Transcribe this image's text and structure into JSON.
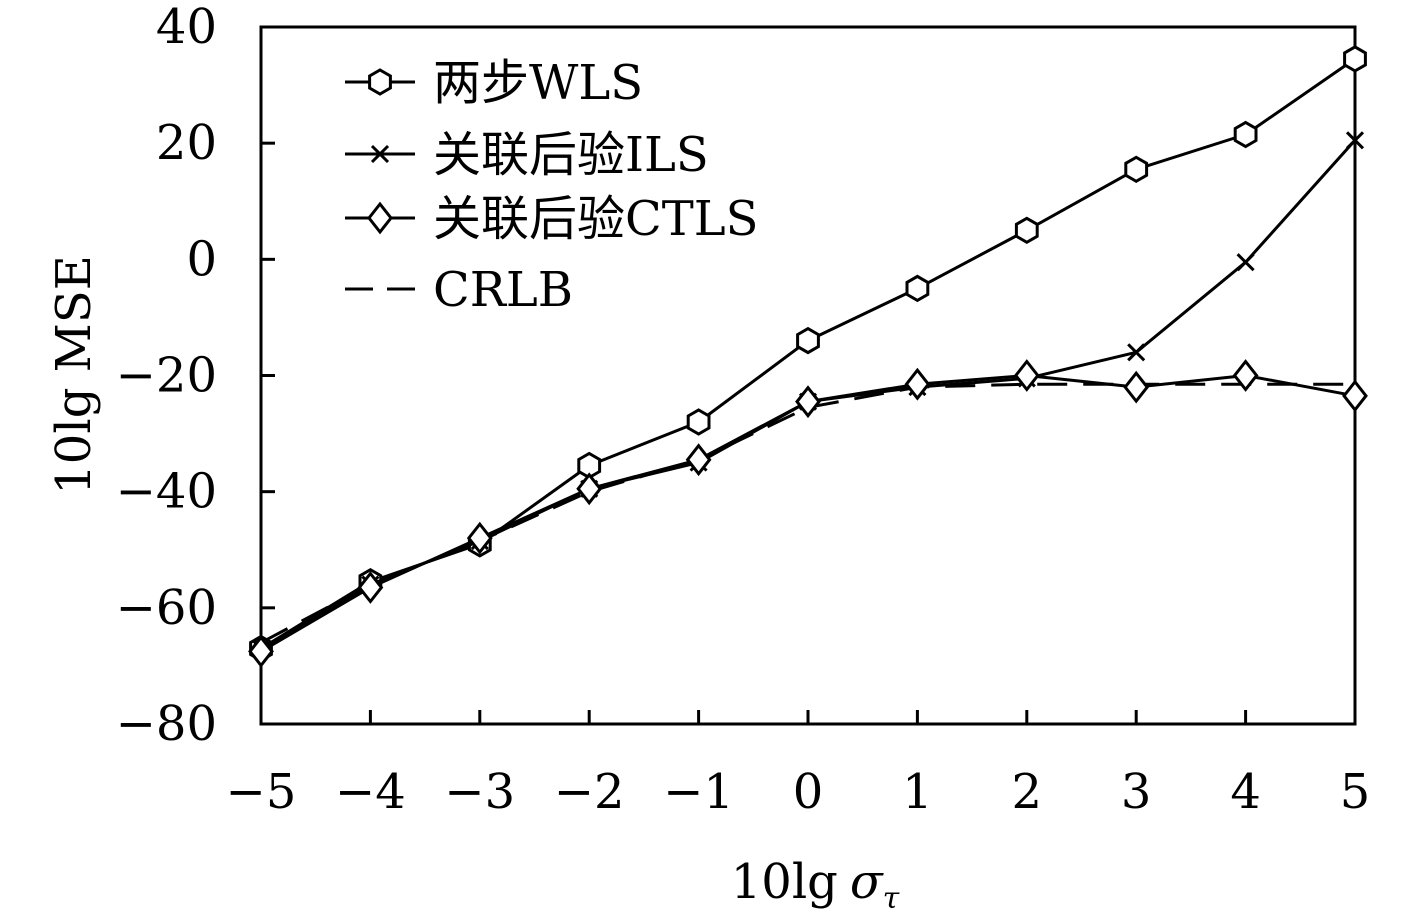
{
  "chart_data": {
    "type": "line",
    "xlabel": "10lg",
    "xlabel_symbol": "σ",
    "xlabel_subscript": "τ",
    "ylabel": "10lg MSE",
    "xlim": [
      -5,
      5
    ],
    "ylim": [
      -80,
      40
    ],
    "xticks": [
      -5,
      -4,
      -3,
      -2,
      -1,
      0,
      1,
      2,
      3,
      4,
      5
    ],
    "yticks": [
      -80,
      -60,
      -40,
      -20,
      0,
      20,
      40
    ],
    "xtick_labels": [
      "−5",
      "−4",
      "−3",
      "−2",
      "−1",
      "0",
      "1",
      "2",
      "3",
      "4",
      "5"
    ],
    "ytick_labels": [
      "−80",
      "−60",
      "−40",
      "−20",
      "0",
      "20",
      "40"
    ],
    "grid": false,
    "legend_position": "top-left",
    "x": [
      -5,
      -4,
      -3,
      -2,
      -1,
      0,
      1,
      2,
      3,
      4,
      5
    ],
    "series": [
      {
        "name": "两步WLS",
        "marker": "hexagon",
        "dash": "solid",
        "values": [
          -67,
          -55.5,
          -49,
          -35.5,
          -28,
          -14,
          -5,
          5,
          15.5,
          21.5,
          34.5
        ]
      },
      {
        "name": "关联后验ILS",
        "marker": "x",
        "dash": "solid",
        "values": [
          -67,
          -56,
          -48.5,
          -39.5,
          -35,
          -24.5,
          -22,
          -20.5,
          -16,
          -0.5,
          20.5
        ]
      },
      {
        "name": "关联后验CTLS",
        "marker": "diamond",
        "dash": "solid",
        "values": [
          -67.5,
          -56.5,
          -48,
          -39.5,
          -34.5,
          -24.5,
          -21.5,
          -20,
          -22,
          -20,
          -23.5
        ]
      },
      {
        "name": "CRLB",
        "marker": "none",
        "dash": "dashed",
        "values": [
          -66,
          -56,
          -48.5,
          -40,
          -34.5,
          -25.5,
          -22,
          -21.5,
          -21.5,
          -21.5,
          -21.5
        ]
      }
    ]
  }
}
